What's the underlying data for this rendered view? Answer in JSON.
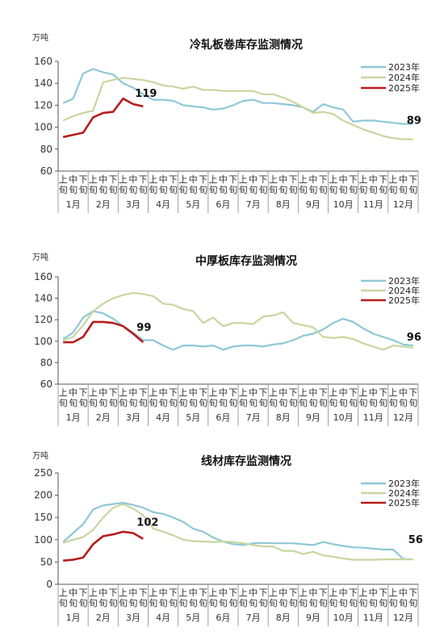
{
  "colors": {
    "y2023": "#8ec8d6",
    "y2024": "#c8d6a0",
    "y2025": "#b71c1c",
    "axis": "#555555"
  },
  "chart_data": [
    {
      "type": "line",
      "title": "冷轧板卷库存监测情况",
      "unit": "万吨",
      "ylim": [
        60,
        160
      ],
      "yticks": [
        "60",
        "80",
        "100",
        "120",
        "140",
        "160"
      ],
      "xtick_labels": [
        "上旬",
        "中旬",
        "下旬"
      ],
      "months": [
        "1月",
        "2月",
        "3月",
        "4月",
        "5月",
        "6月",
        "7月",
        "8月",
        "9月",
        "10月",
        "11月",
        "12月"
      ],
      "series": [
        {
          "name": "2023年",
          "values": [
            122,
            126,
            149,
            153,
            150,
            148,
            140,
            136,
            130,
            125,
            125,
            124,
            120,
            119,
            118,
            116,
            117,
            120,
            124,
            125,
            122,
            122,
            121,
            120,
            118,
            114,
            121,
            118,
            116,
            105,
            106,
            106,
            105,
            104,
            103,
            103
          ]
        },
        {
          "name": "2024年",
          "values": [
            106,
            110,
            113,
            115,
            141,
            143,
            145,
            144,
            143,
            141,
            138,
            137,
            135,
            137,
            134,
            134,
            133,
            133,
            133,
            133,
            130,
            130,
            127,
            123,
            118,
            113,
            114,
            112,
            106,
            102,
            98,
            95,
            92,
            90,
            89,
            89
          ]
        },
        {
          "name": "2025年",
          "values": [
            91,
            93,
            95,
            109,
            113,
            114,
            126,
            121,
            119
          ]
        }
      ],
      "annotations": [
        {
          "text": "119"
        },
        {
          "text": "89"
        }
      ],
      "legend": "top-right"
    },
    {
      "type": "line",
      "title": "中厚板库存监测情况",
      "unit": "万吨",
      "ylim": [
        60,
        160
      ],
      "yticks": [
        "60",
        "80",
        "100",
        "120",
        "140",
        "160"
      ],
      "xtick_labels": [
        "上旬",
        "中旬",
        "下旬"
      ],
      "months": [
        "1月",
        "2月",
        "3月",
        "4月",
        "5月",
        "6月",
        "7月",
        "8月",
        "9月",
        "10月",
        "11月",
        "12月"
      ],
      "series": [
        {
          "name": "2023年",
          "values": [
            102,
            108,
            122,
            128,
            126,
            121,
            114,
            108,
            101,
            101,
            96,
            92,
            96,
            96,
            95,
            96,
            92,
            95,
            96,
            96,
            95,
            97,
            98,
            101,
            105,
            107,
            111,
            117,
            121,
            118,
            112,
            107,
            104,
            101,
            97,
            96
          ]
        },
        {
          "name": "2024年",
          "values": [
            101,
            104,
            115,
            128,
            135,
            140,
            143,
            145,
            144,
            142,
            135,
            134,
            130,
            128,
            117,
            122,
            114,
            117,
            117,
            116,
            123,
            124,
            127,
            117,
            115,
            113,
            104,
            103,
            104,
            102,
            98,
            95,
            92,
            96,
            95,
            94
          ]
        },
        {
          "name": "2025年",
          "values": [
            99,
            99,
            104,
            118,
            118,
            117,
            114,
            107,
            99
          ]
        }
      ],
      "annotations": [
        {
          "text": "99"
        },
        {
          "text": "96"
        }
      ],
      "legend": "top-right"
    },
    {
      "type": "line",
      "title": "线材库存监测情况",
      "unit": "万吨",
      "ylim": [
        0,
        250
      ],
      "yticks": [
        "0",
        "50",
        "100",
        "150",
        "200",
        "250"
      ],
      "xtick_labels": [
        "上旬",
        "中旬",
        "下旬"
      ],
      "months": [
        "1月",
        "2月",
        "3月",
        "4月",
        "5月",
        "6月",
        "7月",
        "8月",
        "9月",
        "10月",
        "11月",
        "12月"
      ],
      "series": [
        {
          "name": "2023年",
          "values": [
            95,
            115,
            135,
            168,
            177,
            180,
            183,
            178,
            172,
            162,
            158,
            150,
            140,
            125,
            118,
            105,
            96,
            90,
            88,
            92,
            93,
            92,
            92,
            92,
            90,
            88,
            95,
            90,
            86,
            83,
            82,
            80,
            78,
            78,
            57,
            56
          ]
        },
        {
          "name": "2024年",
          "values": [
            93,
            100,
            106,
            122,
            150,
            172,
            180,
            170,
            155,
            125,
            118,
            110,
            100,
            97,
            96,
            95,
            96,
            95,
            92,
            88,
            85,
            85,
            75,
            75,
            68,
            73,
            65,
            62,
            58,
            55,
            55,
            55,
            56,
            56,
            56,
            56
          ]
        },
        {
          "name": "2025年",
          "values": [
            53,
            55,
            60,
            90,
            108,
            112,
            118,
            115,
            102
          ]
        }
      ],
      "annotations": [
        {
          "text": "102"
        },
        {
          "text": "56"
        }
      ],
      "legend": "top-right"
    }
  ]
}
